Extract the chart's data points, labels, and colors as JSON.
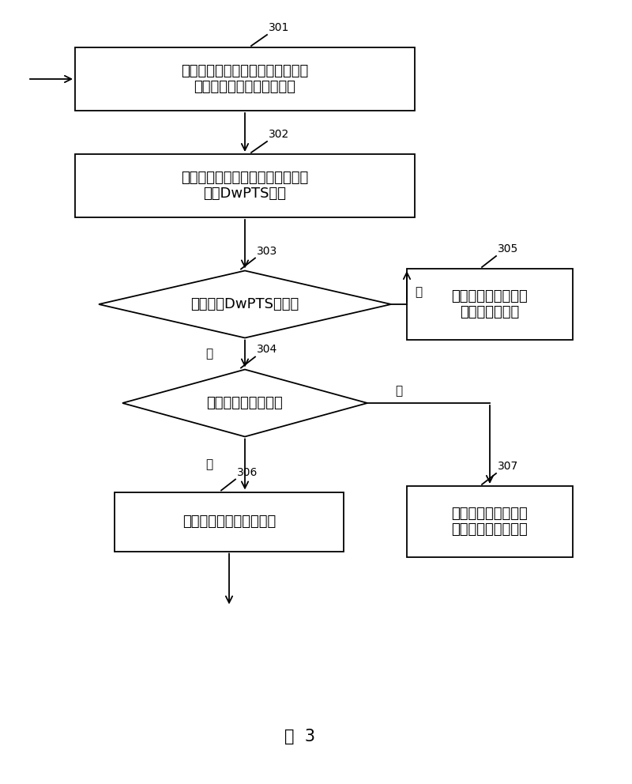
{
  "bg_color": "#ffffff",
  "fig_width": 8.0,
  "fig_height": 9.92,
  "dpi": 100,
  "figure_label": "图  3",
  "node301_text": "终端接收机在适当增益下接收并记\n录基站发射的多个子帧数据",
  "node302_text": "用特征窗判定法搜索多个子帧数据\n中的DwPTS位置",
  "node303_text": "能否获得DwPTS的位置",
  "node304_text": "判定接收机是否饱和",
  "node305_text": "继续执行小区初始搜\n索中的其他步骤",
  "node306_text": "大步长降低接收机的增益",
  "node307_text": "判定当前载波频率下\n没有可以工作的基站",
  "label_yes": "是",
  "label_no": "否",
  "id301": "301",
  "id302": "302",
  "id303": "303",
  "id304": "304",
  "id305": "305",
  "id306": "306",
  "id307": "307",
  "lw": 1.3,
  "fontsize_main": 13,
  "fontsize_id": 10,
  "fontsize_label": 11,
  "fontsize_fig": 15
}
